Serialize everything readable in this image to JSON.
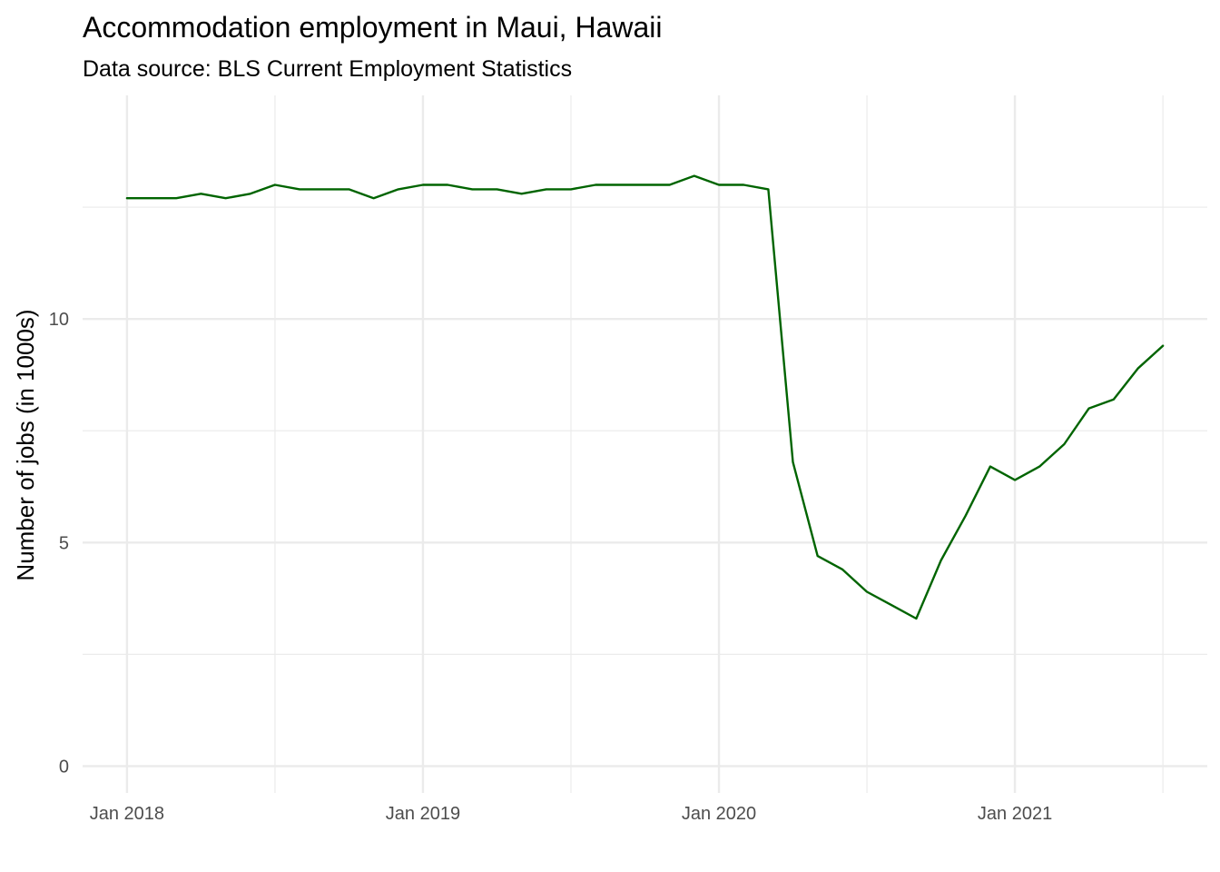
{
  "chart_data": {
    "type": "line",
    "title": "Accommodation employment in Maui, Hawaii",
    "subtitle": "Data source: BLS Current Employment Statistics",
    "xlabel": "",
    "ylabel": "Number of jobs (in 1000s)",
    "x_ticks": [
      "Jan 2018",
      "Jan 2019",
      "Jan 2020",
      "Jan 2021"
    ],
    "y_ticks": [
      0,
      5,
      10
    ],
    "xlim": [
      "2017-11",
      "2021-08"
    ],
    "ylim": [
      -0.6,
      15
    ],
    "grid": true,
    "legend": "none",
    "colors": {
      "series": "#006400"
    },
    "series": [
      {
        "x": [
          "2018-01",
          "2018-02",
          "2018-03",
          "2018-04",
          "2018-05",
          "2018-06",
          "2018-07",
          "2018-08",
          "2018-09",
          "2018-10",
          "2018-11",
          "2018-12",
          "2019-01",
          "2019-02",
          "2019-03",
          "2019-04",
          "2019-05",
          "2019-06",
          "2019-07",
          "2019-08",
          "2019-09",
          "2019-10",
          "2019-11",
          "2019-12",
          "2020-01",
          "2020-02",
          "2020-03",
          "2020-04",
          "2020-05",
          "2020-06",
          "2020-07",
          "2020-08",
          "2020-09",
          "2020-10",
          "2020-11",
          "2020-12",
          "2021-01",
          "2021-02",
          "2021-03",
          "2021-04",
          "2021-05",
          "2021-06",
          "2021-07"
        ],
        "values": [
          12.7,
          12.7,
          12.7,
          12.8,
          12.7,
          12.8,
          13.0,
          12.9,
          12.9,
          12.9,
          12.7,
          12.9,
          13.0,
          13.0,
          12.9,
          12.9,
          12.8,
          12.9,
          12.9,
          13.0,
          13.0,
          13.0,
          13.0,
          13.2,
          13.0,
          13.0,
          12.9,
          6.8,
          4.7,
          4.4,
          3.9,
          3.6,
          3.3,
          4.6,
          5.6,
          6.7,
          6.4,
          6.7,
          7.2,
          8.0,
          8.2,
          8.9,
          9.4
        ]
      }
    ]
  }
}
